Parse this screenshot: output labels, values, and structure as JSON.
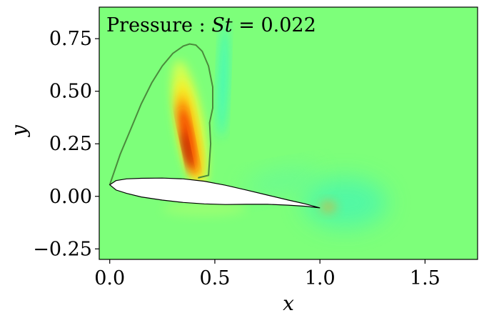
{
  "chart_data": {
    "type": "heatmap",
    "title": {
      "prefix": "Pressure : ",
      "variable": "St",
      "suffix": " = 0.022"
    },
    "xlabel": "x",
    "ylabel": "y",
    "xlim": [
      -0.05,
      1.75
    ],
    "ylim": [
      -0.3,
      0.9
    ],
    "x_ticks": [
      {
        "value": 0.0,
        "label": "0.0"
      },
      {
        "value": 0.5,
        "label": "0.5"
      },
      {
        "value": 1.0,
        "label": "1.0"
      },
      {
        "value": 1.5,
        "label": "1.5"
      }
    ],
    "y_ticks": [
      {
        "value": 0.75,
        "label": "0.75"
      },
      {
        "value": 0.5,
        "label": "0.50"
      },
      {
        "value": 0.25,
        "label": "0.25"
      },
      {
        "value": 0.0,
        "label": "0.00"
      },
      {
        "value": -0.25,
        "label": "−0.25"
      }
    ],
    "colormap": "jet",
    "background_color": "#7dff7a",
    "airfoil": {
      "upper": [
        [
          0.0,
          0.055
        ],
        [
          0.03,
          0.075
        ],
        [
          0.08,
          0.083
        ],
        [
          0.15,
          0.086
        ],
        [
          0.25,
          0.087
        ],
        [
          0.35,
          0.083
        ],
        [
          0.45,
          0.072
        ],
        [
          0.55,
          0.053
        ],
        [
          0.65,
          0.03
        ],
        [
          0.75,
          0.006
        ],
        [
          0.85,
          -0.018
        ],
        [
          0.93,
          -0.036
        ],
        [
          1.0,
          -0.055
        ]
      ],
      "lower": [
        [
          1.0,
          -0.055
        ],
        [
          0.93,
          -0.047
        ],
        [
          0.85,
          -0.042
        ],
        [
          0.75,
          -0.038
        ],
        [
          0.65,
          -0.038
        ],
        [
          0.55,
          -0.039
        ],
        [
          0.45,
          -0.036
        ],
        [
          0.35,
          -0.029
        ],
        [
          0.25,
          -0.018
        ],
        [
          0.15,
          -0.003
        ],
        [
          0.08,
          0.014
        ],
        [
          0.03,
          0.03
        ],
        [
          0.0,
          0.055
        ]
      ],
      "fill": "#ffffff",
      "stroke": "#000000"
    },
    "separation_contour": {
      "points": [
        [
          0.0,
          0.055
        ],
        [
          0.05,
          0.2
        ],
        [
          0.1,
          0.32
        ],
        [
          0.15,
          0.44
        ],
        [
          0.2,
          0.54
        ],
        [
          0.25,
          0.62
        ],
        [
          0.3,
          0.68
        ],
        [
          0.35,
          0.715
        ],
        [
          0.38,
          0.725
        ],
        [
          0.41,
          0.72
        ],
        [
          0.44,
          0.69
        ],
        [
          0.47,
          0.62
        ],
        [
          0.49,
          0.52
        ],
        [
          0.49,
          0.42
        ],
        [
          0.475,
          0.35
        ],
        [
          0.48,
          0.25
        ],
        [
          0.47,
          0.1
        ],
        [
          0.42,
          0.088
        ]
      ],
      "stroke": "#4a8a3c"
    },
    "features": [
      {
        "name": "pressure-band-outer",
        "cx": 0.38,
        "cy": 0.34,
        "rx": 0.065,
        "ry": 0.31,
        "angle_deg": -10,
        "color": "#e6ff4a",
        "opacity": 0.85
      },
      {
        "name": "pressure-band-yellow",
        "cx": 0.38,
        "cy": 0.31,
        "rx": 0.048,
        "ry": 0.25,
        "angle_deg": -10,
        "color": "#ffe81f",
        "opacity": 0.9
      },
      {
        "name": "pressure-band-orange",
        "cx": 0.375,
        "cy": 0.29,
        "rx": 0.032,
        "ry": 0.2,
        "angle_deg": -11,
        "color": "#ff8c00",
        "opacity": 0.92
      },
      {
        "name": "pressure-band-red",
        "cx": 0.37,
        "cy": 0.27,
        "rx": 0.02,
        "ry": 0.16,
        "angle_deg": -11,
        "color": "#ee1b00",
        "opacity": 0.95
      },
      {
        "name": "pressure-band-core",
        "cx": 0.365,
        "cy": 0.22,
        "rx": 0.011,
        "ry": 0.09,
        "angle_deg": -12,
        "color": "#8a0000",
        "opacity": 0.95
      },
      {
        "name": "suction-band-cyan",
        "cx": 0.54,
        "cy": 0.55,
        "rx": 0.02,
        "ry": 0.27,
        "angle_deg": 2,
        "color": "#27f7d9",
        "opacity": 0.8
      },
      {
        "name": "wake-blob-right",
        "cx": 1.12,
        "cy": -0.03,
        "rx": 0.2,
        "ry": 0.12,
        "angle_deg": 0,
        "color": "#3ff5b6",
        "opacity": 0.7
      },
      {
        "name": "wake-blob-left",
        "cx": 0.82,
        "cy": 0.07,
        "rx": 0.18,
        "ry": 0.06,
        "angle_deg": -10,
        "color": "#5cf8a3",
        "opacity": 0.55
      },
      {
        "name": "trailing-edge-spot",
        "cx": 1.04,
        "cy": -0.05,
        "rx": 0.04,
        "ry": 0.03,
        "angle_deg": 0,
        "color": "#ff9d20",
        "opacity": 0.5
      },
      {
        "name": "lower-surface-lightspot",
        "cx": 0.45,
        "cy": -0.06,
        "rx": 0.2,
        "ry": 0.035,
        "angle_deg": 0,
        "color": "#b8ff6a",
        "opacity": 0.45
      }
    ]
  }
}
